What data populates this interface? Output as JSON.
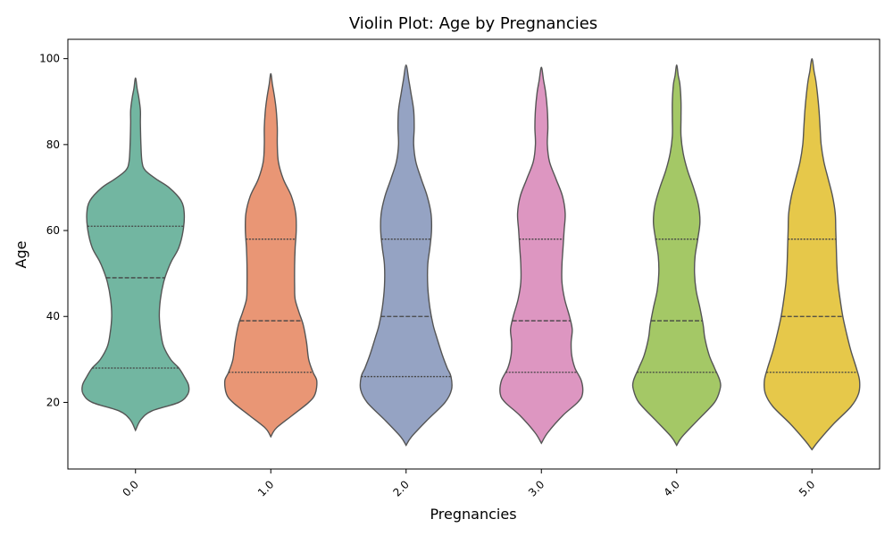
{
  "chart_data": {
    "type": "violin",
    "title": "Violin Plot: Age by Pregnancies",
    "xlabel": "Pregnancies",
    "ylabel": "Age",
    "categories": [
      "0.0",
      "1.0",
      "2.0",
      "3.0",
      "4.0",
      "5.0"
    ],
    "ylim": [
      4.5,
      104.5
    ],
    "yticks": [
      20,
      40,
      60,
      80,
      100
    ],
    "grid": false,
    "legend": "none",
    "inner": "quartile",
    "series": [
      {
        "category": "0.0",
        "color": "#72b6a1",
        "min": 13.5,
        "max": 95.5,
        "q1": 28,
        "median": 49,
        "q3": 61,
        "profile": [
          [
            13.5,
            0.0
          ],
          [
            16,
            0.1
          ],
          [
            18,
            0.3
          ],
          [
            20,
            0.8
          ],
          [
            22,
            0.97
          ],
          [
            24,
            0.98
          ],
          [
            26,
            0.9
          ],
          [
            28,
            0.8
          ],
          [
            30,
            0.65
          ],
          [
            33,
            0.52
          ],
          [
            36,
            0.47
          ],
          [
            40,
            0.44
          ],
          [
            44,
            0.46
          ],
          [
            48,
            0.52
          ],
          [
            51,
            0.6
          ],
          [
            53,
            0.67
          ],
          [
            56,
            0.8
          ],
          [
            60,
            0.88
          ],
          [
            64,
            0.9
          ],
          [
            67,
            0.84
          ],
          [
            70,
            0.62
          ],
          [
            72,
            0.38
          ],
          [
            74,
            0.18
          ],
          [
            76,
            0.12
          ],
          [
            80,
            0.1
          ],
          [
            85,
            0.09
          ],
          [
            88,
            0.09
          ],
          [
            91,
            0.06
          ],
          [
            93,
            0.03
          ],
          [
            95.5,
            0.0
          ]
        ]
      },
      {
        "category": "1.0",
        "color": "#e99675",
        "min": 12,
        "max": 96.5,
        "q1": 27,
        "median": 39,
        "q3": 58,
        "profile": [
          [
            12,
            0.0
          ],
          [
            14,
            0.1
          ],
          [
            17,
            0.4
          ],
          [
            20,
            0.7
          ],
          [
            22,
            0.82
          ],
          [
            25,
            0.85
          ],
          [
            27,
            0.78
          ],
          [
            30,
            0.7
          ],
          [
            34,
            0.66
          ],
          [
            38,
            0.6
          ],
          [
            41,
            0.52
          ],
          [
            44,
            0.45
          ],
          [
            47,
            0.44
          ],
          [
            52,
            0.44
          ],
          [
            56,
            0.45
          ],
          [
            60,
            0.47
          ],
          [
            64,
            0.46
          ],
          [
            68,
            0.38
          ],
          [
            72,
            0.23
          ],
          [
            76,
            0.14
          ],
          [
            80,
            0.12
          ],
          [
            84,
            0.12
          ],
          [
            88,
            0.1
          ],
          [
            91,
            0.07
          ],
          [
            94,
            0.03
          ],
          [
            96.5,
            0.0
          ]
        ]
      },
      {
        "category": "2.0",
        "color": "#95a3c3",
        "min": 10,
        "max": 98.5,
        "q1": 26,
        "median": 40,
        "q3": 58,
        "profile": [
          [
            10,
            0.0
          ],
          [
            12,
            0.1
          ],
          [
            16,
            0.4
          ],
          [
            20,
            0.72
          ],
          [
            23,
            0.84
          ],
          [
            26,
            0.83
          ],
          [
            28,
            0.76
          ],
          [
            31,
            0.67
          ],
          [
            35,
            0.57
          ],
          [
            38,
            0.5
          ],
          [
            42,
            0.44
          ],
          [
            47,
            0.4
          ],
          [
            52,
            0.4
          ],
          [
            56,
            0.44
          ],
          [
            60,
            0.47
          ],
          [
            64,
            0.46
          ],
          [
            68,
            0.39
          ],
          [
            72,
            0.28
          ],
          [
            76,
            0.18
          ],
          [
            80,
            0.14
          ],
          [
            84,
            0.15
          ],
          [
            88,
            0.14
          ],
          [
            92,
            0.09
          ],
          [
            95,
            0.05
          ],
          [
            98.5,
            0.0
          ]
        ]
      },
      {
        "category": "3.0",
        "color": "#dd96c1",
        "min": 10.5,
        "max": 98,
        "q1": 27,
        "median": 39,
        "q3": 58,
        "profile": [
          [
            10.5,
            0.0
          ],
          [
            13,
            0.12
          ],
          [
            17,
            0.4
          ],
          [
            20,
            0.67
          ],
          [
            22,
            0.76
          ],
          [
            25,
            0.74
          ],
          [
            28,
            0.62
          ],
          [
            31,
            0.56
          ],
          [
            34,
            0.55
          ],
          [
            37,
            0.57
          ],
          [
            40,
            0.52
          ],
          [
            44,
            0.43
          ],
          [
            48,
            0.38
          ],
          [
            52,
            0.38
          ],
          [
            56,
            0.4
          ],
          [
            60,
            0.42
          ],
          [
            64,
            0.44
          ],
          [
            68,
            0.39
          ],
          [
            72,
            0.27
          ],
          [
            76,
            0.15
          ],
          [
            80,
            0.11
          ],
          [
            84,
            0.12
          ],
          [
            88,
            0.11
          ],
          [
            92,
            0.08
          ],
          [
            95,
            0.04
          ],
          [
            98,
            0.0
          ]
        ]
      },
      {
        "category": "4.0",
        "color": "#a4c866",
        "min": 10,
        "max": 98.5,
        "q1": 27,
        "median": 39,
        "q3": 58,
        "profile": [
          [
            10,
            0.0
          ],
          [
            12,
            0.1
          ],
          [
            16,
            0.4
          ],
          [
            20,
            0.7
          ],
          [
            23,
            0.8
          ],
          [
            25,
            0.8
          ],
          [
            28,
            0.7
          ],
          [
            31,
            0.6
          ],
          [
            35,
            0.52
          ],
          [
            38,
            0.49
          ],
          [
            42,
            0.43
          ],
          [
            46,
            0.36
          ],
          [
            50,
            0.33
          ],
          [
            54,
            0.34
          ],
          [
            58,
            0.39
          ],
          [
            62,
            0.43
          ],
          [
            66,
            0.4
          ],
          [
            70,
            0.31
          ],
          [
            74,
            0.2
          ],
          [
            78,
            0.12
          ],
          [
            82,
            0.08
          ],
          [
            86,
            0.08
          ],
          [
            90,
            0.08
          ],
          [
            94,
            0.06
          ],
          [
            96,
            0.03
          ],
          [
            98.5,
            0.0
          ]
        ]
      },
      {
        "category": "5.0",
        "color": "#e6c84a",
        "min": 9,
        "max": 100,
        "q1": 27,
        "median": 40,
        "q3": 58,
        "profile": [
          [
            9,
            0.0
          ],
          [
            11,
            0.12
          ],
          [
            15,
            0.4
          ],
          [
            19,
            0.72
          ],
          [
            22,
            0.86
          ],
          [
            25,
            0.88
          ],
          [
            28,
            0.82
          ],
          [
            32,
            0.72
          ],
          [
            36,
            0.64
          ],
          [
            40,
            0.57
          ],
          [
            44,
            0.52
          ],
          [
            48,
            0.48
          ],
          [
            52,
            0.46
          ],
          [
            56,
            0.45
          ],
          [
            60,
            0.44
          ],
          [
            64,
            0.43
          ],
          [
            68,
            0.38
          ],
          [
            72,
            0.3
          ],
          [
            76,
            0.22
          ],
          [
            80,
            0.17
          ],
          [
            84,
            0.15
          ],
          [
            88,
            0.13
          ],
          [
            92,
            0.1
          ],
          [
            95,
            0.07
          ],
          [
            97,
            0.04
          ],
          [
            100,
            0.0
          ]
        ]
      }
    ]
  }
}
